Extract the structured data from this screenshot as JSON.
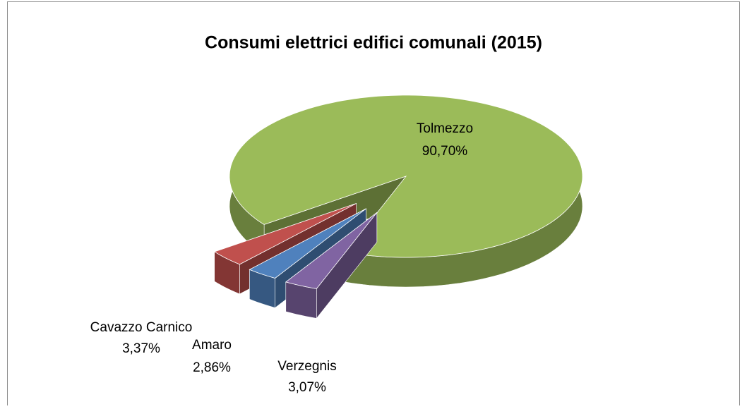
{
  "chart_data": {
    "type": "pie3d",
    "title": "Consumi elettrici edifici comunali (2015)",
    "categories": [
      "Tolmezzo",
      "Cavazzo Carnico",
      "Amaro",
      "Verzegnis"
    ],
    "values": [
      90.7,
      3.37,
      2.86,
      3.07
    ],
    "value_labels": [
      "90,70%",
      "3,37%",
      "2,86%",
      "3,07%"
    ],
    "colors": [
      "#9bbb59",
      "#c0504d",
      "#4f81bd",
      "#8064a2"
    ]
  }
}
